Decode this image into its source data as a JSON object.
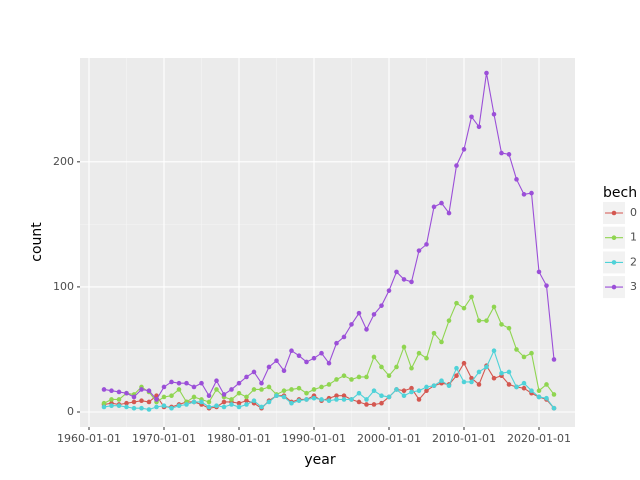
{
  "chart_data": {
    "type": "line",
    "x_label": "year",
    "y_label": "count",
    "legend_title": "bech",
    "x": [
      1962,
      1963,
      1964,
      1965,
      1966,
      1967,
      1968,
      1969,
      1970,
      1971,
      1972,
      1973,
      1974,
      1975,
      1976,
      1977,
      1978,
      1979,
      1980,
      1981,
      1982,
      1983,
      1984,
      1985,
      1986,
      1987,
      1988,
      1989,
      1990,
      1991,
      1992,
      1993,
      1994,
      1995,
      1996,
      1997,
      1998,
      1999,
      2000,
      2001,
      2002,
      2003,
      2004,
      2005,
      2006,
      2007,
      2008,
      2009,
      2010,
      2011,
      2012,
      2013,
      2014,
      2015,
      2016,
      2017,
      2018,
      2019,
      2020,
      2021,
      2022
    ],
    "series": [
      {
        "name": "0",
        "color": "#d45750",
        "values": [
          6,
          7,
          6,
          7,
          8,
          9,
          8,
          13,
          4,
          4,
          6,
          8,
          8,
          6,
          3,
          4,
          8,
          8,
          7,
          9,
          7,
          3,
          9,
          13,
          13,
          8,
          10,
          10,
          13,
          9,
          11,
          13,
          13,
          10,
          8,
          6,
          6,
          7,
          12,
          18,
          17,
          19,
          10,
          17,
          21,
          23,
          22,
          29,
          39,
          27,
          22,
          37,
          27,
          29,
          22,
          20,
          19,
          15,
          12,
          10,
          3
        ]
      },
      {
        "name": "1",
        "color": "#8fd550",
        "values": [
          7,
          10,
          10,
          15,
          14,
          20,
          16,
          8,
          12,
          13,
          18,
          8,
          12,
          10,
          8,
          18,
          12,
          10,
          15,
          12,
          18,
          18,
          20,
          14,
          17,
          18,
          19,
          15,
          18,
          20,
          22,
          26,
          29,
          26,
          28,
          28,
          44,
          36,
          29,
          36,
          52,
          35,
          47,
          43,
          63,
          56,
          73,
          87,
          83,
          92,
          73,
          73,
          84,
          70,
          67,
          50,
          44,
          47,
          17,
          22,
          14
        ]
      },
      {
        "name": "2",
        "color": "#4fd2d8",
        "values": [
          4,
          5,
          5,
          4,
          3,
          3,
          2,
          4,
          5,
          3,
          5,
          6,
          8,
          8,
          4,
          5,
          4,
          6,
          4,
          6,
          9,
          4,
          8,
          13,
          12,
          7,
          9,
          10,
          11,
          10,
          9,
          10,
          10,
          10,
          15,
          10,
          17,
          13,
          12,
          18,
          13,
          16,
          17,
          20,
          21,
          25,
          21,
          35,
          24,
          24,
          32,
          36,
          49,
          31,
          32,
          20,
          23,
          17,
          12,
          11,
          3
        ]
      },
      {
        "name": "3",
        "color": "#9b4fd8",
        "values": [
          18,
          17,
          16,
          15,
          12,
          18,
          17,
          10,
          20,
          24,
          23,
          23,
          20,
          23,
          13,
          25,
          14,
          18,
          23,
          28,
          32,
          23,
          36,
          41,
          33,
          49,
          45,
          40,
          43,
          47,
          39,
          55,
          60,
          70,
          79,
          66,
          78,
          85,
          97,
          112,
          106,
          104,
          129,
          134,
          164,
          167,
          159,
          197,
          210,
          236,
          228,
          271,
          238,
          207,
          206,
          186,
          174,
          175,
          112,
          101,
          42
        ]
      }
    ],
    "xlim": [
      1958.8,
      2024.8
    ],
    "xticks": [
      {
        "value": 1960,
        "label": "1960-01-01"
      },
      {
        "value": 1970,
        "label": "1970-01-01"
      },
      {
        "value": 1980,
        "label": "1980-01-01"
      },
      {
        "value": 1990,
        "label": "1990-01-01"
      },
      {
        "value": 2000,
        "label": "2000-01-01"
      },
      {
        "value": 2010,
        "label": "2010-01-01"
      },
      {
        "value": 2020,
        "label": "2020-01-01"
      }
    ],
    "ylim": [
      -12,
      283
    ],
    "yticks": [
      0,
      100,
      200
    ],
    "grid": true
  }
}
